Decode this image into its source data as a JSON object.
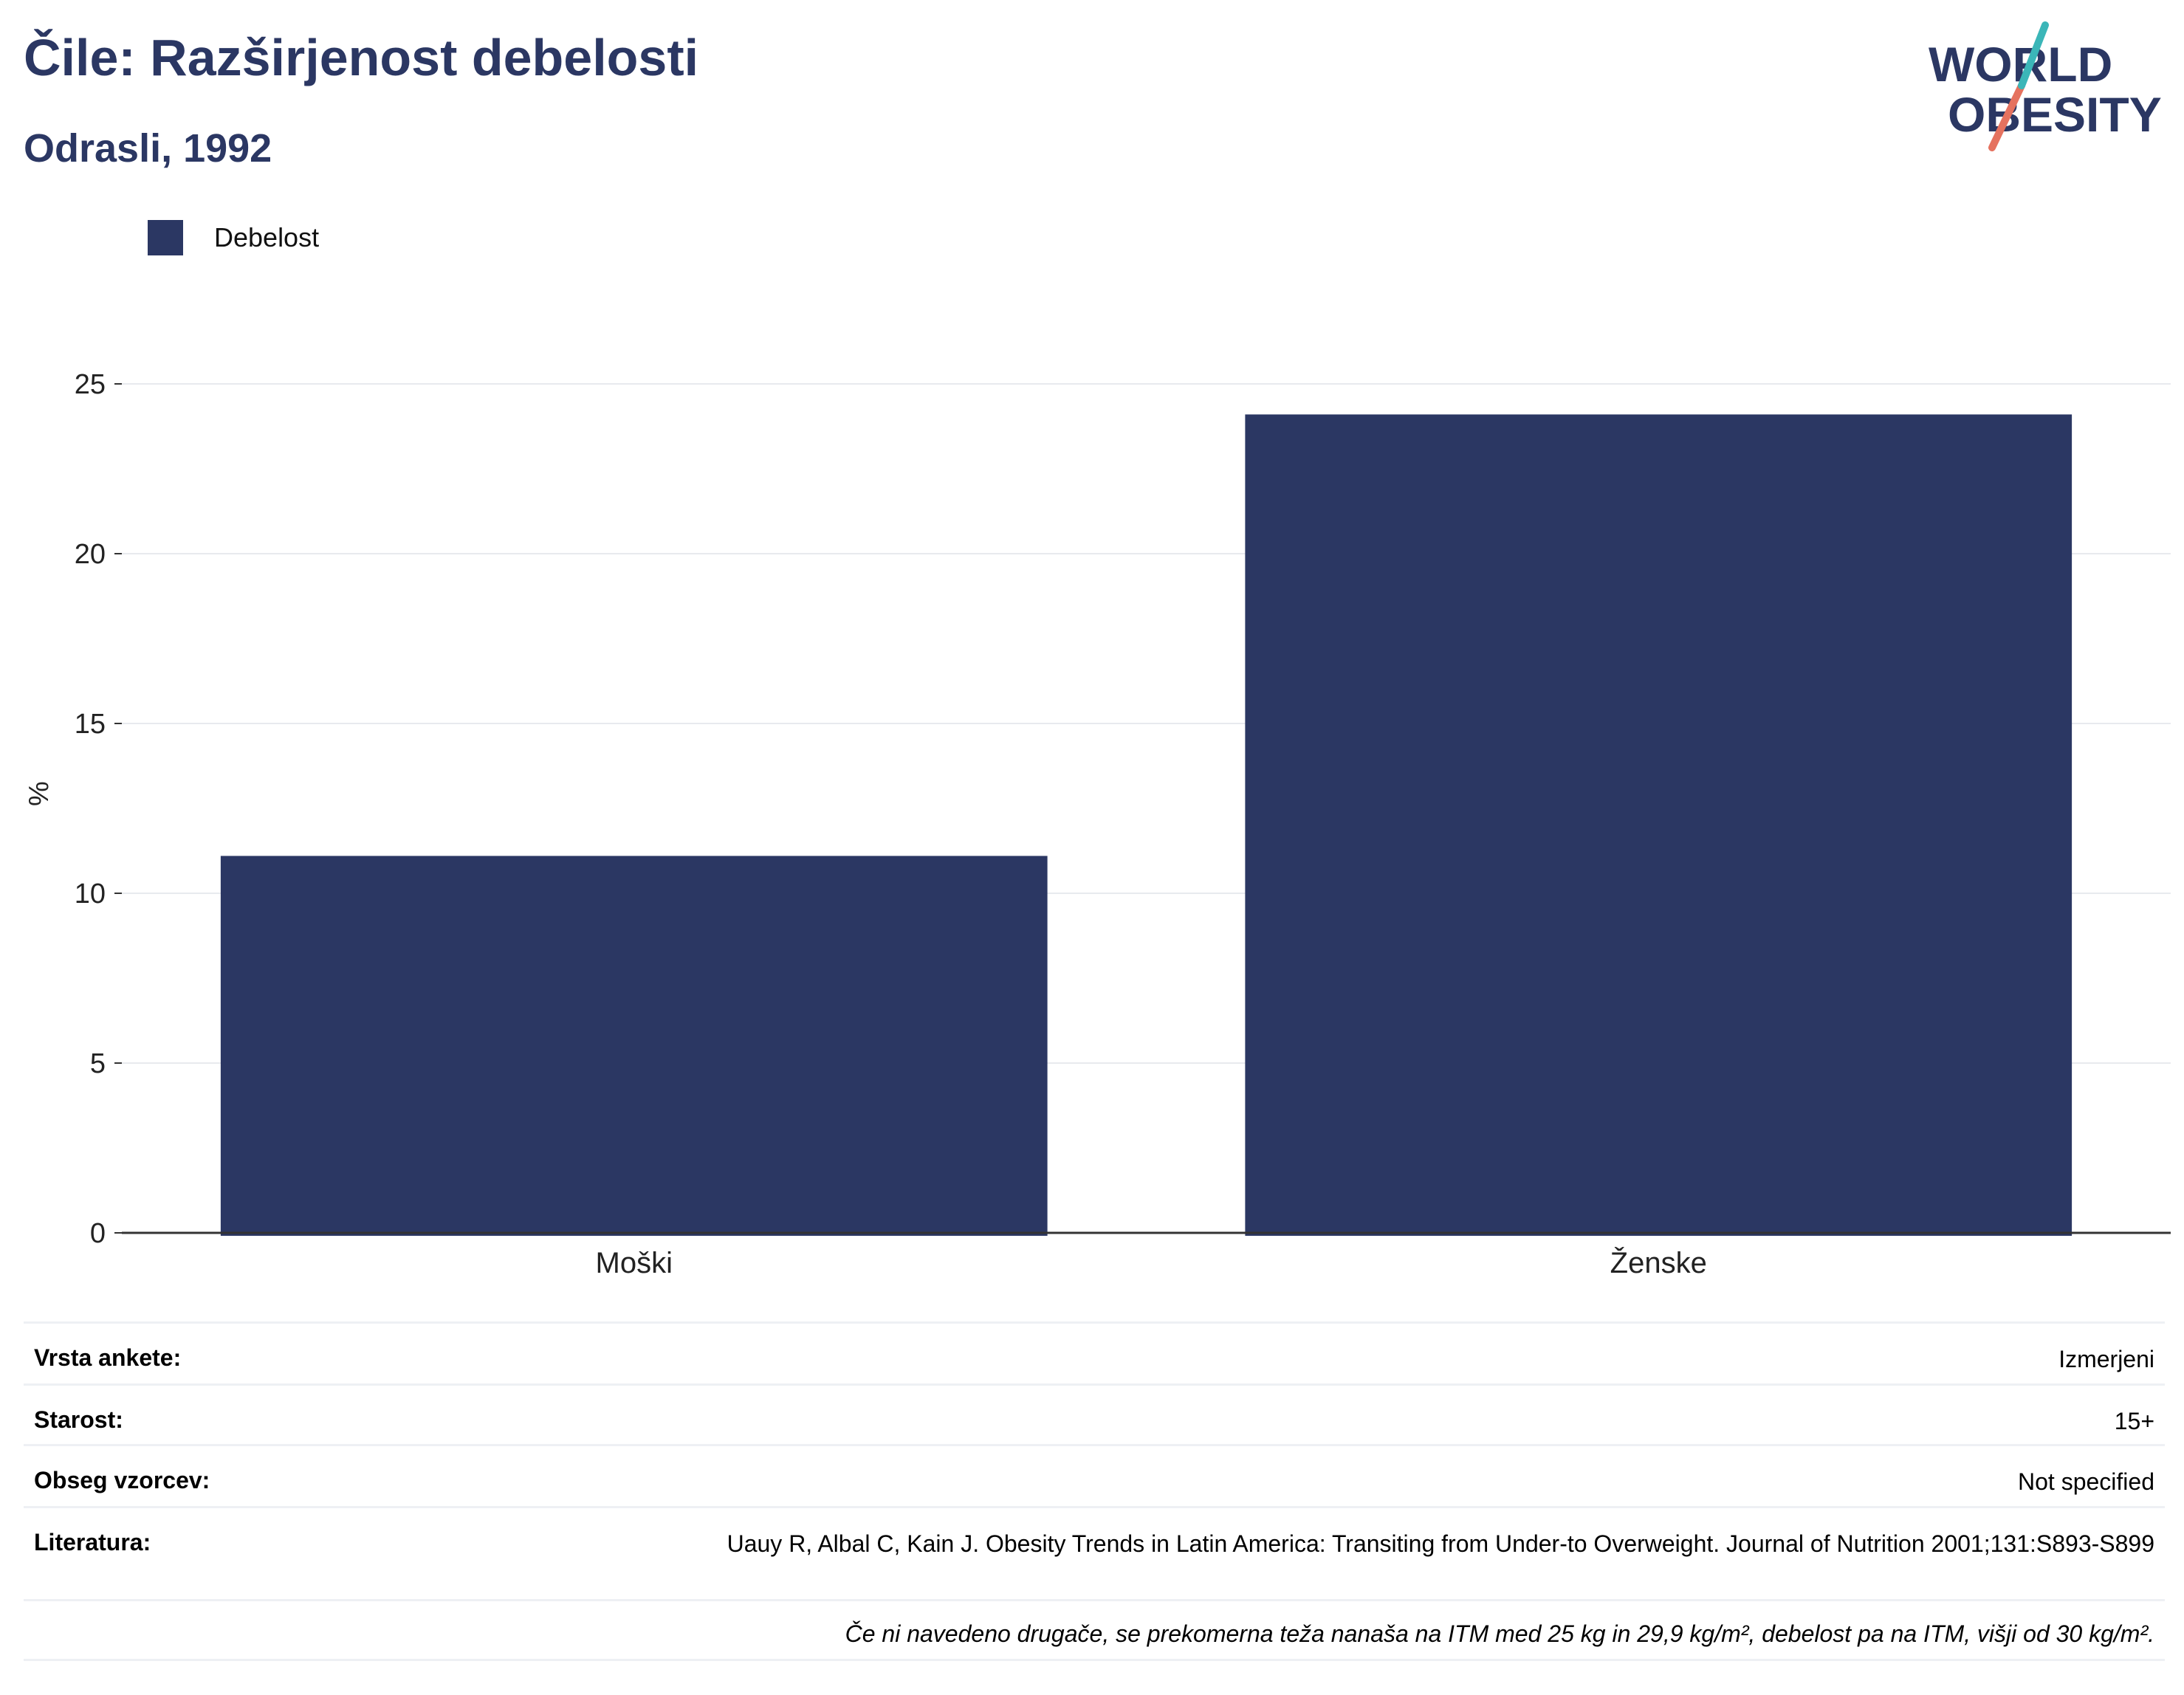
{
  "header": {
    "title": "Čile: Razširjenost debelosti",
    "subtitle": "Odrasli, 1992"
  },
  "logo": {
    "line1": "WORLD",
    "line2": "OBESITY"
  },
  "colors": {
    "bar": "#2b3763",
    "title": "#2b3763",
    "grid": "#e8eaee",
    "axis": "#333333"
  },
  "chart_data": {
    "type": "bar",
    "categories": [
      "Moški",
      "Ženske"
    ],
    "series": [
      {
        "name": "Debelost",
        "values": [
          11.1,
          24.1
        ]
      }
    ],
    "ylabel": "%",
    "xlabel": "",
    "ylim": [
      0,
      25
    ],
    "yticks": [
      0,
      5,
      10,
      15,
      20,
      25
    ],
    "grid": true,
    "legend": "top-left"
  },
  "info": {
    "rows": [
      {
        "key": "Vrsta ankete:",
        "value": "Izmerjeni"
      },
      {
        "key": "Starost:",
        "value": "15+"
      },
      {
        "key": "Obseg vzorcev:",
        "value": "Not specified"
      },
      {
        "key": "Literatura:",
        "value": "Uauy R, Albal C, Kain J. Obesity Trends in Latin America: Transiting from Under-to Overweight. Journal of Nutrition 2001;131:S893-S899"
      }
    ],
    "note": "Če ni navedeno drugače, se prekomerna teža nanaša na ITM med 25 kg in 29,9 kg/m², debelost pa na ITM, višji od 30 kg/m²."
  }
}
